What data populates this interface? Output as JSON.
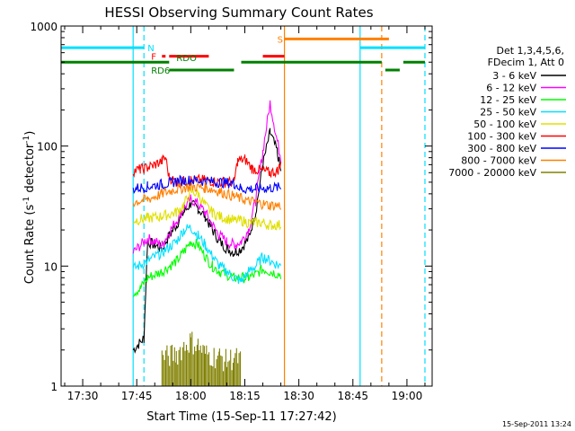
{
  "chart_data": {
    "type": "line",
    "title": "HESSI Observing Summary Count Rates",
    "xlabel": "Start Time (15-Sep-11 17:27:42)",
    "ylabel_main": "Count Rate (s",
    "ylabel_exp1": "-1",
    "ylabel_mid": " detector",
    "ylabel_exp2": "-1",
    "ylabel_end": ")",
    "yscale": "log",
    "ylim": [
      1,
      1000
    ],
    "xlim": [
      "17:24",
      "19:07"
    ],
    "xtick_labels": [
      "17:30",
      "17:45",
      "18:00",
      "18:15",
      "18:30",
      "18:45",
      "19:00"
    ],
    "ytick_labels": [
      "1",
      "10",
      "100",
      "1000"
    ],
    "footer_stamp": "15-Sep-2011 13:24",
    "legend": {
      "header_lines": [
        "Det 1,3,4,5,6,",
        "FDecim 1, Att 0"
      ],
      "entries": [
        {
          "label": "3 - 6 keV",
          "color": "#000000"
        },
        {
          "label": "6 - 12 keV",
          "color": "#ff00ff"
        },
        {
          "label": "12 - 25 keV",
          "color": "#00ff00"
        },
        {
          "label": "25 - 50 keV",
          "color": "#00e0ff"
        },
        {
          "label": "50 - 100 keV",
          "color": "#e0e000"
        },
        {
          "label": "100 - 300 keV",
          "color": "#ff0000"
        },
        {
          "label": "300 - 800 keV",
          "color": "#0000ff"
        },
        {
          "label": "800 - 7000 keV",
          "color": "#ff8000"
        },
        {
          "label": "7000 - 20000 keV",
          "color": "#808000"
        }
      ]
    },
    "flags": {
      "labels": {
        "N": "N",
        "F": "F",
        "RDO": "RDO",
        "RD6": "RD6",
        "S": "S"
      },
      "N": {
        "color": "#00e0ff",
        "y": 660,
        "intervals": [
          [
            "17:24",
            "17:47"
          ],
          [
            "18:47",
            "19:05"
          ]
        ]
      },
      "F": {
        "color": "#ff0000",
        "y": 560,
        "intervals": [
          [
            "17:52",
            "17:53"
          ],
          [
            "17:54",
            "18:05"
          ],
          [
            "18:20",
            "18:26"
          ]
        ]
      },
      "S": {
        "color": "#ff8000",
        "y": 780,
        "intervals": [
          [
            "18:26",
            "18:55"
          ]
        ]
      },
      "RDO": {
        "color": "#008000",
        "y": 500,
        "intervals": [
          [
            "17:24",
            "17:54"
          ],
          [
            "18:14",
            "18:53"
          ],
          [
            "18:59",
            "19:05"
          ]
        ]
      },
      "RD6": {
        "color": "#008000",
        "y": 430,
        "intervals": [
          [
            "17:54",
            "18:12"
          ],
          [
            "18:54",
            "18:58"
          ]
        ]
      }
    },
    "vlines": [
      {
        "time": "17:44",
        "color": "#00e0ff",
        "style": "solid"
      },
      {
        "time": "17:47",
        "color": "#00e0ff",
        "style": "dashed"
      },
      {
        "time": "18:26",
        "color": "#ff8000",
        "style": "solid"
      },
      {
        "time": "18:47",
        "color": "#00e0ff",
        "style": "solid"
      },
      {
        "time": "18:53",
        "color": "#ff8000",
        "style": "dashed"
      },
      {
        "time": "19:05",
        "color": "#00e0ff",
        "style": "dashed"
      }
    ],
    "series": [
      {
        "name": "3 - 6 keV",
        "color": "#000000",
        "points": [
          [
            "17:44",
            2
          ],
          [
            "17:47",
            2.5
          ],
          [
            "17:48",
            16
          ],
          [
            "17:50",
            15
          ],
          [
            "17:52",
            14
          ],
          [
            "17:54",
            18
          ],
          [
            "17:56",
            22
          ],
          [
            "17:58",
            28
          ],
          [
            "18:00",
            33
          ],
          [
            "18:02",
            30
          ],
          [
            "18:04",
            26
          ],
          [
            "18:06",
            20
          ],
          [
            "18:08",
            16
          ],
          [
            "18:10",
            14
          ],
          [
            "18:12",
            13
          ],
          [
            "18:14",
            14
          ],
          [
            "18:16",
            17
          ],
          [
            "18:18",
            28
          ],
          [
            "18:20",
            70
          ],
          [
            "18:22",
            130
          ],
          [
            "18:24",
            90
          ],
          [
            "18:25",
            60
          ]
        ]
      },
      {
        "name": "6 - 12 keV",
        "color": "#ff00ff",
        "points": [
          [
            "17:44",
            13
          ],
          [
            "17:48",
            17
          ],
          [
            "17:50",
            16
          ],
          [
            "17:52",
            15
          ],
          [
            "17:54",
            19
          ],
          [
            "17:56",
            24
          ],
          [
            "17:58",
            30
          ],
          [
            "18:00",
            36
          ],
          [
            "18:02",
            33
          ],
          [
            "18:04",
            28
          ],
          [
            "18:06",
            22
          ],
          [
            "18:08",
            18
          ],
          [
            "18:10",
            16
          ],
          [
            "18:12",
            15
          ],
          [
            "18:14",
            16
          ],
          [
            "18:16",
            20
          ],
          [
            "18:18",
            35
          ],
          [
            "18:20",
            90
          ],
          [
            "18:22",
            230
          ],
          [
            "18:24",
            110
          ],
          [
            "18:25",
            80
          ]
        ]
      },
      {
        "name": "12 - 25 keV",
        "color": "#00ff00",
        "points": [
          [
            "17:44",
            6
          ],
          [
            "17:46",
            6.5
          ],
          [
            "17:48",
            8
          ],
          [
            "17:52",
            9
          ],
          [
            "17:56",
            11
          ],
          [
            "17:58",
            13
          ],
          [
            "18:00",
            16
          ],
          [
            "18:02",
            15
          ],
          [
            "18:04",
            12
          ],
          [
            "18:06",
            10
          ],
          [
            "18:08",
            9
          ],
          [
            "18:10",
            8.5
          ],
          [
            "18:12",
            8
          ],
          [
            "18:14",
            8
          ],
          [
            "18:16",
            8
          ],
          [
            "18:18",
            8.5
          ],
          [
            "18:20",
            9.5
          ],
          [
            "18:22",
            9
          ],
          [
            "18:25",
            8.5
          ]
        ]
      },
      {
        "name": "25 - 50 keV",
        "color": "#00e0ff",
        "points": [
          [
            "17:44",
            9.5
          ],
          [
            "17:48",
            11
          ],
          [
            "17:52",
            13
          ],
          [
            "17:56",
            16
          ],
          [
            "17:58",
            20
          ],
          [
            "18:00",
            21
          ],
          [
            "18:02",
            18
          ],
          [
            "18:04",
            15
          ],
          [
            "18:06",
            12
          ],
          [
            "18:08",
            10
          ],
          [
            "18:10",
            9
          ],
          [
            "18:12",
            8
          ],
          [
            "18:14",
            7.5
          ],
          [
            "18:16",
            9
          ],
          [
            "18:18",
            10
          ],
          [
            "18:20",
            12
          ],
          [
            "18:22",
            11
          ],
          [
            "18:25",
            10
          ]
        ]
      },
      {
        "name": "50 - 100 keV",
        "color": "#e0e000",
        "points": [
          [
            "17:44",
            24
          ],
          [
            "17:48",
            25
          ],
          [
            "17:52",
            26
          ],
          [
            "17:56",
            28
          ],
          [
            "17:58",
            32
          ],
          [
            "18:00",
            42
          ],
          [
            "18:02",
            40
          ],
          [
            "18:04",
            32
          ],
          [
            "18:06",
            28
          ],
          [
            "18:08",
            26
          ],
          [
            "18:10",
            25
          ],
          [
            "18:12",
            24
          ],
          [
            "18:14",
            24
          ],
          [
            "18:16",
            23
          ],
          [
            "18:18",
            23
          ],
          [
            "18:20",
            23
          ],
          [
            "18:22",
            22
          ],
          [
            "18:25",
            22
          ]
        ]
      },
      {
        "name": "100 - 300 keV",
        "color": "#ff0000",
        "points": [
          [
            "17:44",
            62
          ],
          [
            "17:46",
            64
          ],
          [
            "17:48",
            66
          ],
          [
            "17:50",
            70
          ],
          [
            "17:52",
            75
          ],
          [
            "17:53",
            80
          ],
          [
            "17:54",
            55
          ],
          [
            "17:56",
            50
          ],
          [
            "18:00",
            52
          ],
          [
            "18:04",
            52
          ],
          [
            "18:08",
            50
          ],
          [
            "18:10",
            50
          ],
          [
            "18:12",
            50
          ],
          [
            "18:13",
            75
          ],
          [
            "18:15",
            78
          ],
          [
            "18:17",
            65
          ],
          [
            "18:20",
            62
          ],
          [
            "18:22",
            60
          ],
          [
            "18:24",
            62
          ],
          [
            "18:25",
            70
          ]
        ]
      },
      {
        "name": "300 - 800 keV",
        "color": "#0000ff",
        "points": [
          [
            "17:44",
            44
          ],
          [
            "17:48",
            46
          ],
          [
            "17:52",
            48
          ],
          [
            "17:54",
            49
          ],
          [
            "17:56",
            51
          ],
          [
            "18:00",
            52
          ],
          [
            "18:04",
            51
          ],
          [
            "18:08",
            50
          ],
          [
            "18:12",
            49
          ],
          [
            "18:14",
            44
          ],
          [
            "18:18",
            44
          ],
          [
            "18:22",
            45
          ],
          [
            "18:25",
            45
          ]
        ]
      },
      {
        "name": "800 - 7000 keV",
        "color": "#ff8000",
        "points": [
          [
            "17:44",
            34
          ],
          [
            "17:48",
            36
          ],
          [
            "17:52",
            40
          ],
          [
            "17:56",
            44
          ],
          [
            "18:00",
            46
          ],
          [
            "18:04",
            45
          ],
          [
            "18:08",
            42
          ],
          [
            "18:12",
            38
          ],
          [
            "18:16",
            35
          ],
          [
            "18:20",
            33
          ],
          [
            "18:22",
            32
          ],
          [
            "18:25",
            32
          ]
        ]
      },
      {
        "name": "7000 - 20000 keV",
        "color": "#808000",
        "points": [
          [
            "17:52",
            1.6
          ],
          [
            "17:56",
            1.7
          ],
          [
            "18:00",
            2.2
          ],
          [
            "18:02",
            2.0
          ],
          [
            "18:04",
            1.7
          ],
          [
            "18:08",
            1.6
          ],
          [
            "18:10",
            1.5
          ],
          [
            "18:12",
            1.6
          ],
          [
            "18:14",
            1.5
          ]
        ]
      }
    ]
  }
}
